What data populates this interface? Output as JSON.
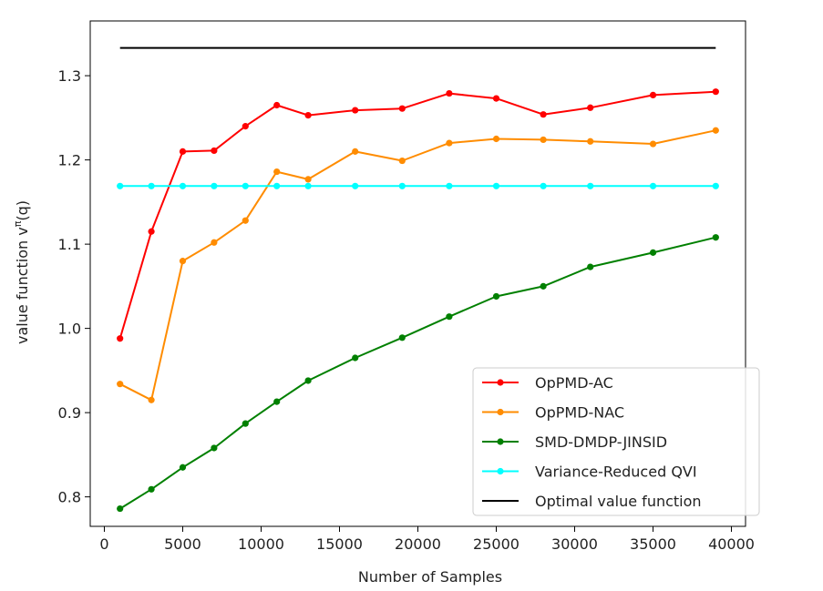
{
  "chart_data": {
    "type": "line",
    "xlabel": "Number of Samples",
    "ylabel_main": "value function v",
    "ylabel_sup": "π",
    "ylabel_tail": "(q)",
    "xlim": [
      -900,
      40900
    ],
    "ylim": [
      0.765,
      1.365
    ],
    "xticks": [
      0,
      5000,
      10000,
      15000,
      20000,
      25000,
      30000,
      35000,
      40000
    ],
    "yticks": [
      0.8,
      0.9,
      1.0,
      1.1,
      1.2,
      1.3
    ],
    "ytick_labels": [
      "0.8",
      "0.9",
      "1.0",
      "1.1",
      "1.2",
      "1.3"
    ],
    "legend_position": "lower right",
    "x": [
      1000,
      3000,
      5000,
      7000,
      9000,
      11000,
      13000,
      16000,
      19000,
      22000,
      25000,
      28000,
      31000,
      35000,
      39000
    ],
    "series": [
      {
        "name": "OpPMD-AC",
        "color": "#ff0000",
        "marker": true,
        "values": [
          0.988,
          1.115,
          1.21,
          1.211,
          1.24,
          1.265,
          1.253,
          1.259,
          1.261,
          1.279,
          1.273,
          1.254,
          1.262,
          1.277,
          1.281
        ]
      },
      {
        "name": "OpPMD-NAC",
        "color": "#ff8c00",
        "marker": true,
        "values": [
          0.934,
          0.915,
          1.08,
          1.102,
          1.128,
          1.186,
          1.177,
          1.21,
          1.199,
          1.22,
          1.225,
          1.224,
          1.222,
          1.219,
          1.235
        ]
      },
      {
        "name": "SMD-DMDP-JINSID",
        "color": "#008000",
        "marker": true,
        "values": [
          0.786,
          0.809,
          0.835,
          0.858,
          0.887,
          0.913,
          0.938,
          0.965,
          0.989,
          1.014,
          1.038,
          1.05,
          1.073,
          1.09,
          1.108
        ]
      },
      {
        "name": "Variance-Reduced QVI",
        "color": "#00ffff",
        "marker": true,
        "values": [
          1.169,
          1.169,
          1.169,
          1.169,
          1.169,
          1.169,
          1.169,
          1.169,
          1.169,
          1.169,
          1.169,
          1.169,
          1.169,
          1.169,
          1.169
        ]
      },
      {
        "name": "Optimal value function",
        "color": "#000000",
        "marker": false,
        "values": [
          1.333,
          1.333,
          1.333,
          1.333,
          1.333,
          1.333,
          1.333,
          1.333,
          1.333,
          1.333,
          1.333,
          1.333,
          1.333,
          1.333,
          1.333
        ]
      }
    ]
  }
}
